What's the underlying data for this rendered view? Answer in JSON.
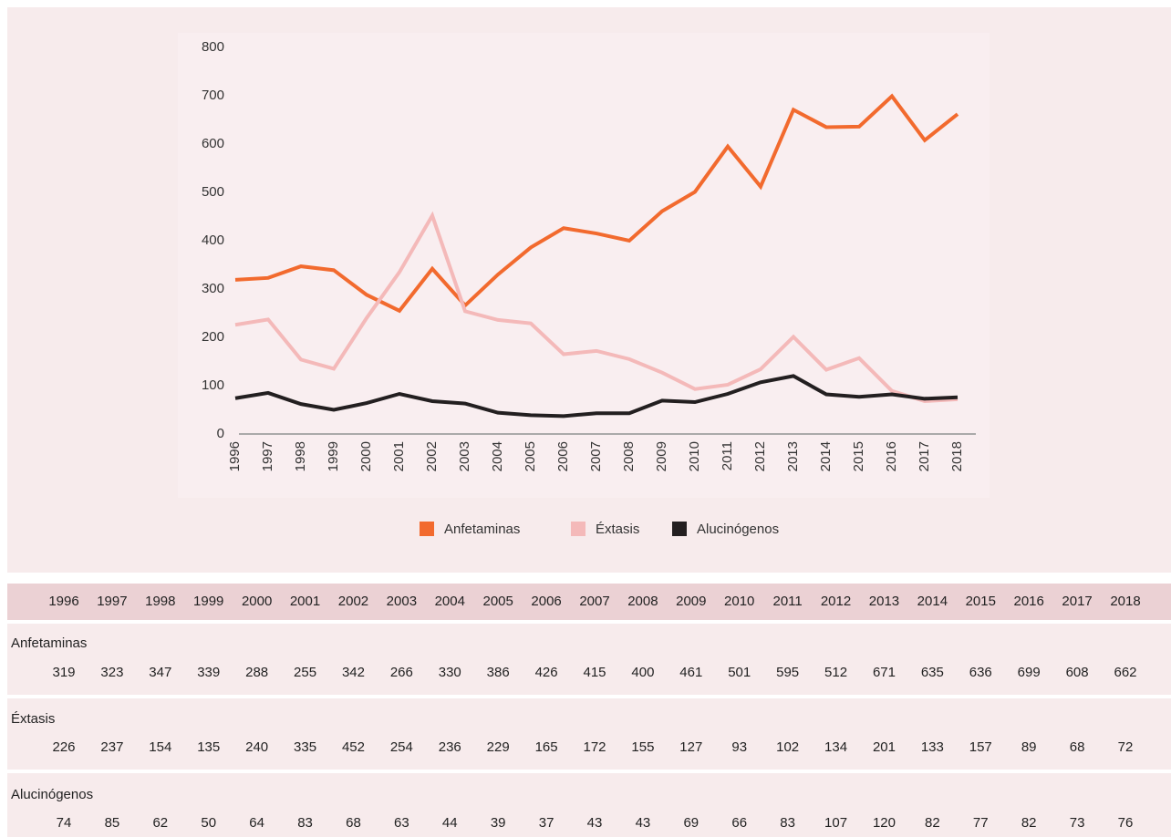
{
  "chart_data": {
    "type": "line",
    "categories": [
      "1996",
      "1997",
      "1998",
      "1999",
      "2000",
      "2001",
      "2002",
      "2003",
      "2004",
      "2005",
      "2006",
      "2007",
      "2008",
      "2009",
      "2010",
      "2011",
      "2012",
      "2013",
      "2014",
      "2015",
      "2016",
      "2017",
      "2018"
    ],
    "series": [
      {
        "name": "Anfetaminas",
        "color": "#f26a2e",
        "values": [
          319,
          323,
          347,
          339,
          288,
          255,
          342,
          266,
          330,
          386,
          426,
          415,
          400,
          461,
          501,
          595,
          512,
          671,
          635,
          636,
          699,
          608,
          662
        ]
      },
      {
        "name": "Éxtasis",
        "color": "#f4b9b9",
        "values": [
          226,
          237,
          154,
          135,
          240,
          335,
          452,
          254,
          236,
          229,
          165,
          172,
          155,
          127,
          93,
          102,
          134,
          201,
          133,
          157,
          89,
          68,
          72
        ]
      },
      {
        "name": "Alucinógenos",
        "color": "#231f20",
        "values": [
          74,
          85,
          62,
          50,
          64,
          83,
          68,
          63,
          44,
          39,
          37,
          43,
          43,
          69,
          66,
          83,
          107,
          120,
          82,
          77,
          82,
          73,
          76
        ]
      }
    ],
    "ylim": [
      0,
      800
    ],
    "yticks": [
      0,
      100,
      200,
      300,
      400,
      500,
      600,
      700,
      800
    ],
    "legend": "bottom"
  }
}
